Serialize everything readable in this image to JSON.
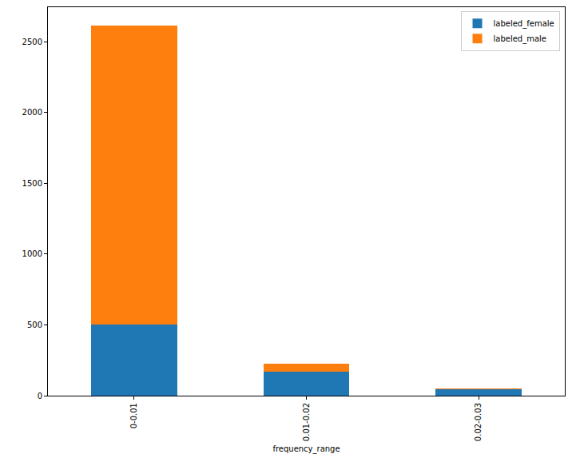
{
  "chart_data": {
    "type": "bar",
    "stacked": true,
    "x_label": "frequency_range",
    "categories": [
      "0-0.01",
      "0.01-0.02",
      "0.02-0.03"
    ],
    "series": [
      {
        "name": "labeled_female",
        "color": "#1f77b4",
        "values": [
          505,
          170,
          45
        ]
      },
      {
        "name": "labeled_male",
        "color": "#ff7f0e",
        "values": [
          2110,
          55,
          5
        ]
      }
    ],
    "ylim": [
      0,
      2745
    ],
    "yticks": [
      0,
      500,
      1000,
      1500,
      2000,
      2500
    ],
    "grid": false,
    "legend": "upper right"
  }
}
